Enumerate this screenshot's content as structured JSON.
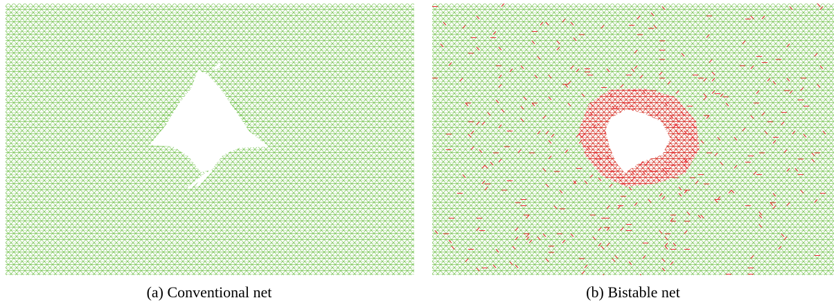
{
  "panels": [
    {
      "caption": "(a) Conventional net"
    },
    {
      "caption": "(b) Bistable net"
    }
  ]
}
